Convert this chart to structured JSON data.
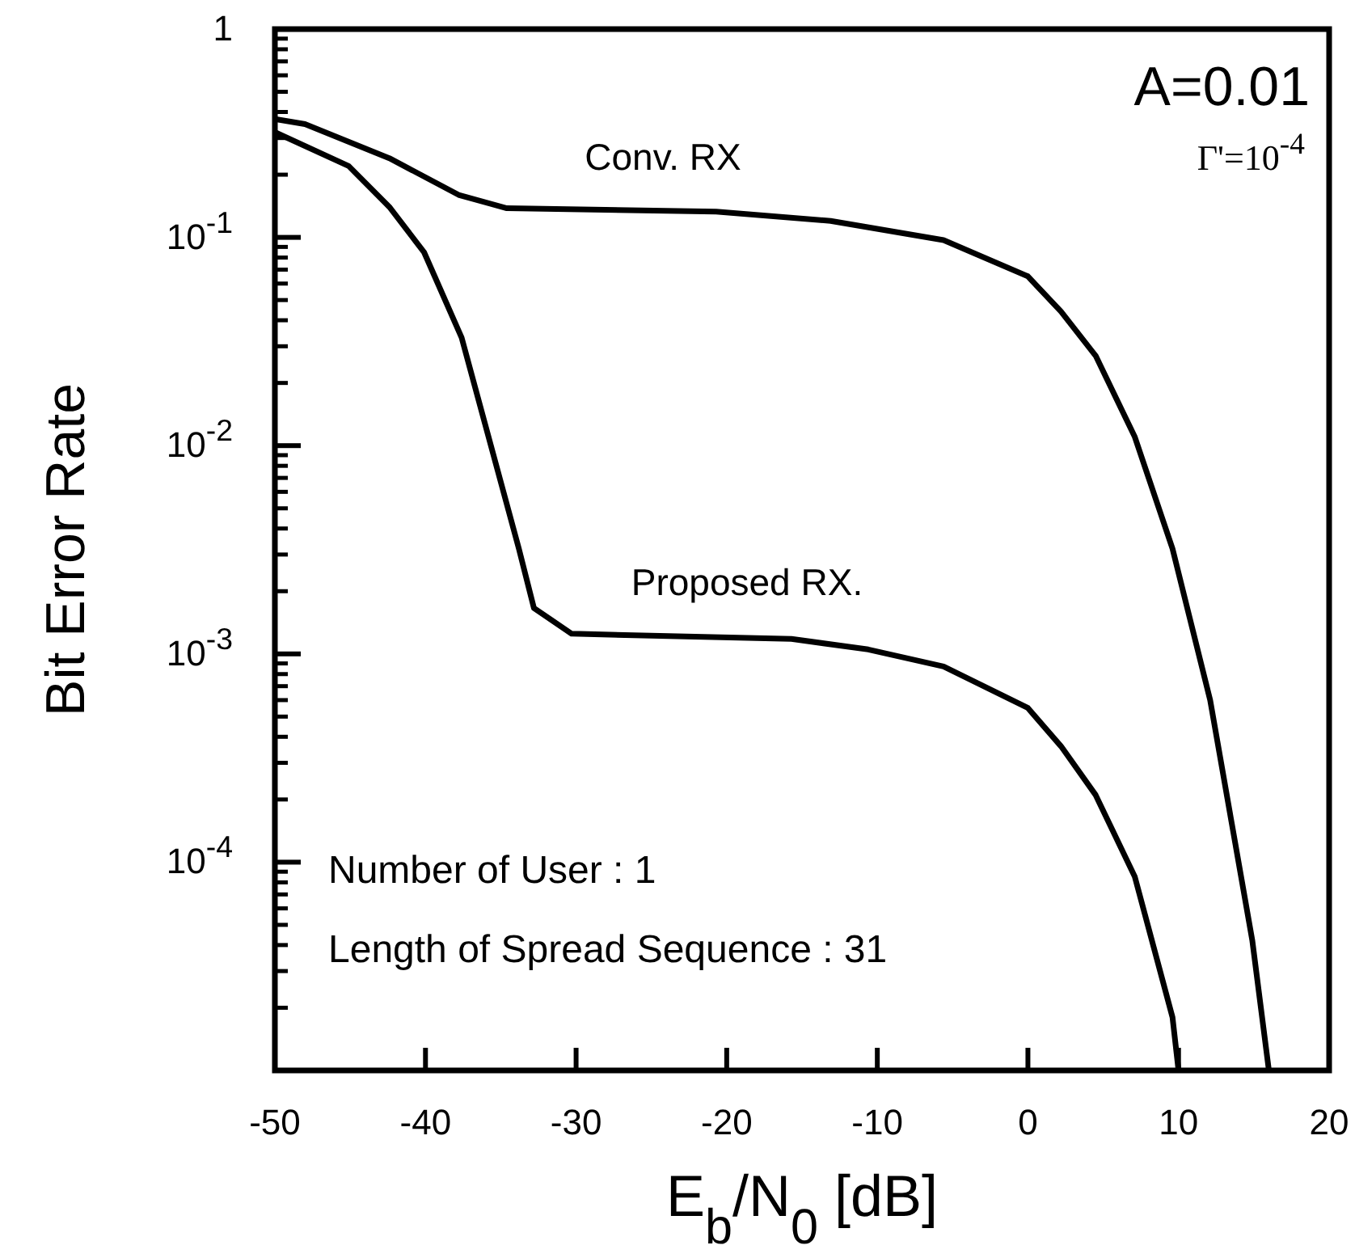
{
  "chart_data": {
    "type": "line",
    "xlabel": "E$_{b}$/N$_{0}$ [dB]",
    "ylabel": "Bit Error  Rate",
    "log": "y",
    "xlim": [
      -50,
      20
    ],
    "ylim": [
      1e-05,
      1
    ],
    "xticks": [
      -50,
      -40,
      -30,
      -20,
      -10,
      0,
      10,
      20
    ],
    "yticks": [
      {
        "value": 1,
        "label": "1"
      },
      {
        "value": 0.1,
        "label": "10$^{-1}$"
      },
      {
        "value": 0.01,
        "label": "10$^{-2}$"
      },
      {
        "value": 0.001,
        "label": "10$^{-3}$"
      },
      {
        "value": 0.0001,
        "label": "10$^{-4}$"
      },
      {
        "value": 1e-05,
        "label": null
      }
    ],
    "grid": false,
    "marker": "none",
    "line_style": "solid",
    "series": [
      {
        "name": "Conv. RX",
        "color": "#000000",
        "x": [
          -50,
          -48,
          -42.4,
          -37.8,
          -34.6,
          -20.7,
          -13.1,
          -5.6,
          0,
          2.2,
          4.5,
          7.1,
          9.6,
          12.1,
          14.9,
          16
        ],
        "values": [
          0.37,
          0.35,
          0.24,
          0.16,
          0.138,
          0.133,
          0.12,
          0.097,
          0.065,
          0.044,
          0.027,
          0.011,
          0.0032,
          0.0006,
          4.2e-05,
          1e-05
        ]
      },
      {
        "name": "Proposed RX.",
        "color": "#000000",
        "x": [
          -50,
          -45.1,
          -42.4,
          -40.1,
          -37.6,
          -33.8,
          -32.8,
          -30.3,
          -15.7,
          -10.6,
          -5.6,
          0,
          2.2,
          4.5,
          7.1,
          9.6,
          10
        ],
        "values": [
          0.32,
          0.22,
          0.14,
          0.085,
          0.033,
          0.0032,
          0.00166,
          0.00125,
          0.00118,
          0.00105,
          0.00087,
          0.00055,
          0.00036,
          0.00021,
          8.5e-05,
          1.8e-05,
          1e-05
        ]
      }
    ],
    "annotations": [
      "A=0.01",
      "Γ'=10$^{-4}$",
      "Number of User : 1",
      "Length of Spread Sequence : 31"
    ]
  }
}
